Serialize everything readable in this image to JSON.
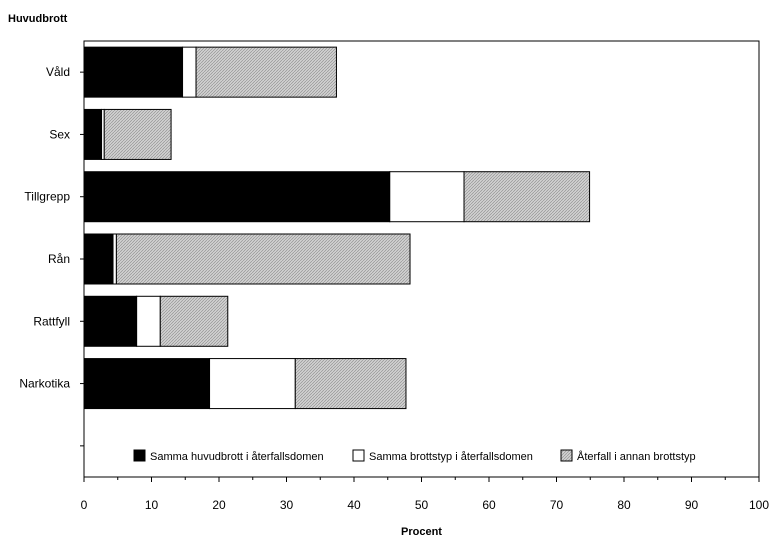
{
  "chart_data": {
    "type": "bar",
    "orientation": "horizontal",
    "stacked": true,
    "y_title": "Huvudbrott",
    "xlabel": "Procent",
    "xlim": [
      0,
      100
    ],
    "x_ticks": [
      "0",
      "10",
      "20",
      "30",
      "40",
      "50",
      "60",
      "70",
      "80",
      "90",
      "100"
    ],
    "categories": [
      "Våld",
      "Sex",
      "Tillgrepp",
      "Rån",
      "Rattfyll",
      "Narkotika"
    ],
    "series": [
      {
        "name": "Samma huvudbrott i återfallsdomen",
        "color": "#000000",
        "values": [
          14.6,
          2.6,
          45.3,
          4.3,
          7.8,
          18.6
        ]
      },
      {
        "name": "Samma brottstyp i återfallsdomen",
        "color": "#ffffff",
        "values": [
          2.0,
          0.4,
          11.0,
          0.5,
          3.5,
          12.7
        ]
      },
      {
        "name": "Återfall i annan brottstyp",
        "color": "#c8c8c8",
        "values": [
          20.8,
          9.9,
          18.6,
          43.5,
          10.0,
          16.4
        ]
      }
    ],
    "legend_position": "bottom-inside",
    "grid": false
  }
}
